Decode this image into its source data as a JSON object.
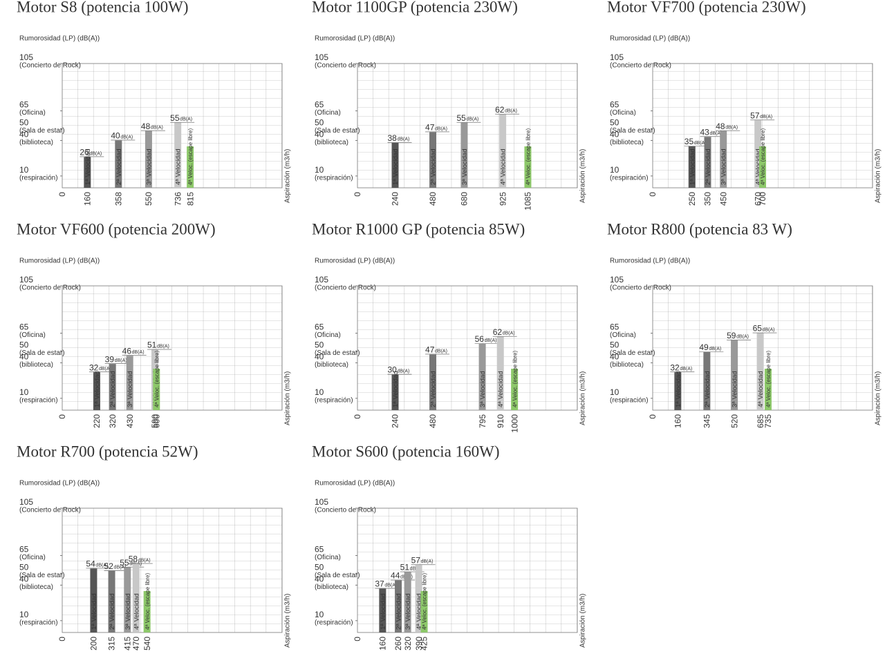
{
  "chart_data": [
    {
      "type": "bar",
      "title": "Motor S8 (potencia 100W)",
      "y_label": "Rumorosidad (LP) (dB(A))",
      "x_label": "Aspiración (m3/h)",
      "value_unit": "dB(A)",
      "categories": [
        "1ª Velocidad",
        "2ª Velocidad",
        "3ª Velocidad",
        "4ª Velocidad",
        "4ª Veloc. (escape libre)"
      ],
      "x": [
        160,
        358,
        550,
        736,
        815
      ],
      "values": [
        26,
        40,
        48,
        55,
        35
      ],
      "value_labels": [
        "26",
        "40",
        "48",
        "55",
        null
      ],
      "colors": [
        "#555555",
        "#777777",
        "#999999",
        "#c8c8c8",
        "#8dc86a"
      ],
      "xlim": [
        0,
        1400
      ],
      "xticks": [
        0
      ],
      "ylim": [
        0,
        105
      ],
      "yticks": [
        105,
        65,
        50,
        40,
        10
      ],
      "ytick_notes": [
        "(Concierto de Rock)",
        "(Oficina)",
        "(Sala de estar)",
        "(biblioteca)",
        "(respiración)"
      ],
      "grid": true
    },
    {
      "type": "bar",
      "title": "Motor 1100GP (potencia 230W)",
      "y_label": "Rumorosidad (LP) (dB(A))",
      "x_label": "Aspiración (m3/h)",
      "value_unit": "dB(A)",
      "categories": [
        "1ª Velocidad",
        "2ª Velocidad",
        "3ª Velocidad",
        "4ª Velocidad",
        "4ª Veloc. (escape libre)"
      ],
      "x": [
        240,
        480,
        680,
        925,
        1085
      ],
      "values": [
        38,
        47,
        55,
        62,
        35
      ],
      "value_labels": [
        "38",
        "47",
        "55",
        "62",
        null
      ],
      "colors": [
        "#555555",
        "#777777",
        "#999999",
        "#c8c8c8",
        "#8dc86a"
      ],
      "xlim": [
        0,
        1400
      ],
      "xticks": [
        0
      ],
      "ylim": [
        0,
        105
      ],
      "yticks": [
        105,
        65,
        50,
        40,
        10
      ],
      "ytick_notes": [
        "(Concierto de Rock)",
        "(Oficina)",
        "(Sala de estar)",
        "(biblioteca)",
        "(respiración)"
      ],
      "grid": true
    },
    {
      "type": "bar",
      "title": "Motor VF700 (potencia 230W)",
      "y_label": "Rumorosidad (LP) (dB(A))",
      "x_label": "Aspiración (m3/h)",
      "value_unit": "dB(A)",
      "categories": [
        "1ª Velocidad",
        "2ª Velocidad",
        "3ª Velocidad",
        "4ª Velocidad",
        "4ª Veloc. (escape libre)"
      ],
      "x": [
        250,
        350,
        450,
        670,
        700
      ],
      "values": [
        35,
        43,
        48,
        57,
        35
      ],
      "value_labels": [
        "35",
        "43",
        "48",
        "57",
        null
      ],
      "colors": [
        "#555555",
        "#777777",
        "#999999",
        "#c8c8c8",
        "#8dc86a"
      ],
      "xlim": [
        0,
        1400
      ],
      "xticks": [
        0
      ],
      "ylim": [
        0,
        105
      ],
      "yticks": [
        105,
        65,
        50,
        40,
        10
      ],
      "ytick_notes": [
        "(Concierto de Rock)",
        "(Oficina)",
        "(Sala de estar)",
        "(biblioteca)",
        "(respiración)"
      ],
      "grid": true
    },
    {
      "type": "bar",
      "title": "Motor VF600 (potencia 200W)",
      "y_label": "Rumorosidad (LP) (dB(A))",
      "x_label": "Aspiración (m3/h)",
      "value_unit": "dB(A)",
      "categories": [
        "1ª Velocidad",
        "2ª Velocidad",
        "3ª Velocidad",
        "4ª Velocidad",
        "4ª Veloc. (escape libre)"
      ],
      "x": [
        220,
        320,
        430,
        590,
        600
      ],
      "values": [
        32,
        39,
        46,
        51,
        35
      ],
      "value_labels": [
        "32",
        "39",
        "46",
        "51",
        null
      ],
      "colors": [
        "#555555",
        "#777777",
        "#999999",
        "#c8c8c8",
        "#8dc86a"
      ],
      "xlim": [
        0,
        1400
      ],
      "xticks": [
        0
      ],
      "ylim": [
        0,
        105
      ],
      "yticks": [
        105,
        65,
        50,
        40,
        10
      ],
      "ytick_notes": [
        "(Concierto de Rock)",
        "(Oficina)",
        "(Sala de estar)",
        "(biblioteca)",
        "(respiración)"
      ],
      "grid": true
    },
    {
      "type": "bar",
      "title": "Motor R1000 GP (potencia 85W)",
      "y_label": "Rumorosidad (LP) (dB(A))",
      "x_label": "Aspiración (m3/h)",
      "value_unit": "dB(A)",
      "categories": [
        "1ª Velocidad",
        "2ª Velocidad",
        "3ª Velocidad",
        "4ª Velocidad",
        "4ª Veloc. (escape libre)"
      ],
      "x": [
        240,
        480,
        795,
        910,
        1000
      ],
      "values": [
        30,
        47,
        56,
        62,
        35
      ],
      "value_labels": [
        "30",
        "47",
        "56",
        "62",
        null
      ],
      "colors": [
        "#555555",
        "#777777",
        "#999999",
        "#c8c8c8",
        "#8dc86a"
      ],
      "xlim": [
        0,
        1400
      ],
      "xticks": [
        0
      ],
      "ylim": [
        0,
        105
      ],
      "yticks": [
        105,
        65,
        50,
        40,
        10
      ],
      "ytick_notes": [
        "(Concierto de Rock)",
        "(Oficina)",
        "(Sala de estar)",
        "(biblioteca)",
        "(respiración)"
      ],
      "grid": true
    },
    {
      "type": "bar",
      "title": "Motor R800 (potencia 83 W)",
      "y_label": "Rumorosidad (LP) (dB(A))",
      "x_label": "Aspiración (m3/h)",
      "value_unit": "dB(A)",
      "categories": [
        "1ª Velocidad",
        "2ª Velocidad",
        "3ª Velocidad",
        "4ª Velocidad",
        "4ª Veloc. (escape libre)"
      ],
      "x": [
        160,
        345,
        520,
        685,
        735
      ],
      "values": [
        32,
        49,
        59,
        65,
        35
      ],
      "value_labels": [
        "32",
        "49",
        "59",
        "65",
        null
      ],
      "colors": [
        "#555555",
        "#777777",
        "#999999",
        "#c8c8c8",
        "#8dc86a"
      ],
      "xlim": [
        0,
        1400
      ],
      "xticks": [
        0
      ],
      "ylim": [
        0,
        105
      ],
      "yticks": [
        105,
        65,
        50,
        40,
        10
      ],
      "ytick_notes": [
        "(Concierto de Rock)",
        "(Oficina)",
        "(Sala de estar)",
        "(biblioteca)",
        "(respiración)"
      ],
      "grid": true
    },
    {
      "type": "bar",
      "title": "Motor R700 (potencia 52W)",
      "y_label": "Rumorosidad (LP) (dB(A))",
      "x_label": "Aspiración (m3/h)",
      "value_unit": "dB(A)",
      "categories": [
        "1ª Velocidad",
        "2ª Velocidad",
        "3ª Velocidad",
        "4ª Velocidad",
        "4ª Veloc. (escape libre)"
      ],
      "x": [
        200,
        315,
        415,
        470,
        540
      ],
      "values": [
        54,
        52,
        55,
        58,
        35
      ],
      "value_labels": [
        "54",
        "52",
        "55",
        "58",
        null
      ],
      "colors": [
        "#555555",
        "#777777",
        "#999999",
        "#c8c8c8",
        "#8dc86a"
      ],
      "xlim": [
        0,
        1400
      ],
      "xticks": [
        0
      ],
      "ylim": [
        0,
        105
      ],
      "yticks": [
        105,
        65,
        50,
        40,
        10
      ],
      "ytick_notes": [
        "(Concierto de Rock)",
        "(Oficina)",
        "(Sala de estar)",
        "(biblioteca)",
        "(respiración)"
      ],
      "grid": true
    },
    {
      "type": "bar",
      "title": "Motor S600 (potencia 160W)",
      "y_label": "Rumorosidad (LP) (dB(A))",
      "x_label": "Aspiración (m3/h)",
      "value_unit": "dB(A)",
      "categories": [
        "1ª Velocidad",
        "2ª Velocidad",
        "3ª Velocidad",
        "4ª Velocidad",
        "4ª Veloc. (escape libre)"
      ],
      "x": [
        160,
        260,
        320,
        390,
        425
      ],
      "values": [
        37,
        44,
        51,
        57,
        35
      ],
      "value_labels": [
        "37",
        "44",
        "51",
        "57",
        null
      ],
      "colors": [
        "#555555",
        "#777777",
        "#999999",
        "#c8c8c8",
        "#8dc86a"
      ],
      "xlim": [
        0,
        1400
      ],
      "xticks": [
        0
      ],
      "ylim": [
        0,
        105
      ],
      "yticks": [
        105,
        65,
        50,
        40,
        10
      ],
      "ytick_notes": [
        "(Concierto de Rock)",
        "(Oficina)",
        "(Sala de estar)",
        "(biblioteca)",
        "(respiración)"
      ],
      "grid": true
    }
  ]
}
